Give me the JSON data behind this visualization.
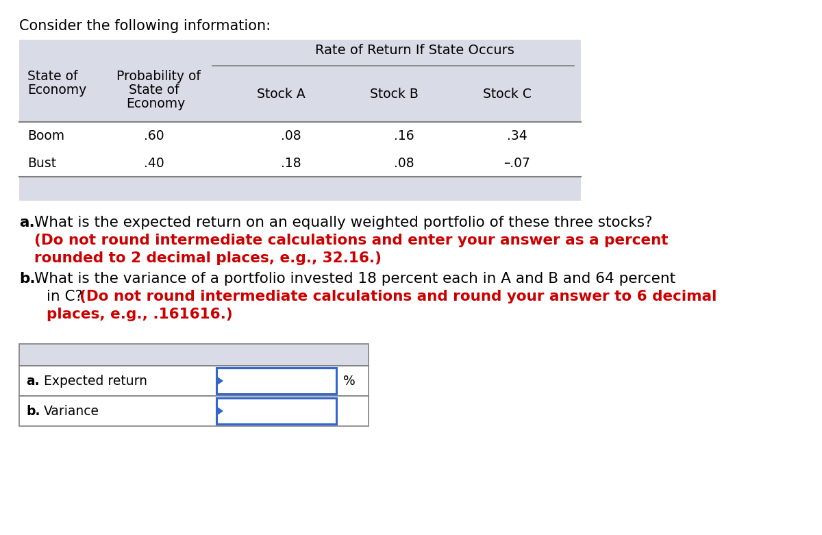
{
  "title": "Consider the following information:",
  "table_header_top": "Rate of Return If State Occurs",
  "rows": [
    [
      "Boom",
      ".60",
      ".08",
      ".16",
      ".34"
    ],
    [
      "Bust",
      ".40",
      ".18",
      ".08",
      "–.07"
    ]
  ],
  "answer_a_label": "a.",
  "answer_a_text": "Expected return",
  "answer_a_unit": "%",
  "answer_b_label": "b.",
  "answer_b_text": "Variance",
  "bg_color": "#d9dce6",
  "white": "#ffffff",
  "black": "#000000",
  "red": "#cc0000",
  "blue_border": "#3366cc",
  "gray_border": "#808080"
}
